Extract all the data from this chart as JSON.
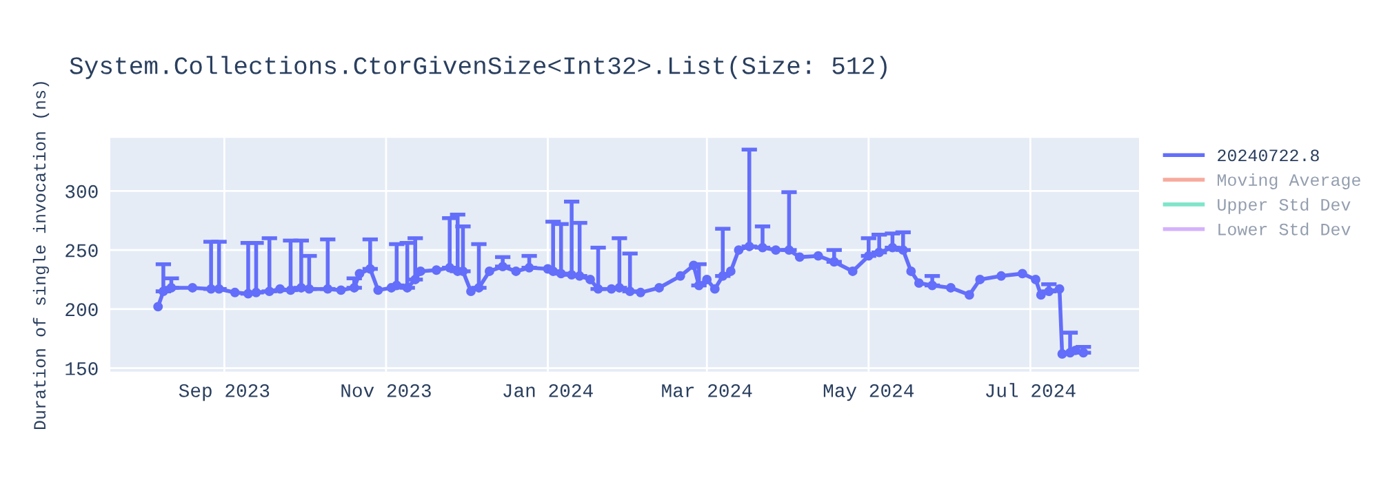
{
  "chart_data": {
    "type": "line",
    "title": "System.Collections.CtorGivenSize<Int32>.List(Size: 512)",
    "ylabel": "Duration of single invocation (ns)",
    "xlim": [
      "2023-07-20",
      "2024-08-11"
    ],
    "ylim": [
      147,
      345
    ],
    "yticks": [
      150,
      200,
      250,
      300
    ],
    "xticks": [
      {
        "value": "2023-09-01",
        "label": "Sep 2023"
      },
      {
        "value": "2023-11-01",
        "label": "Nov 2023"
      },
      {
        "value": "2024-01-01",
        "label": "Jan 2024"
      },
      {
        "value": "2024-03-01",
        "label": "Mar 2024"
      },
      {
        "value": "2024-05-01",
        "label": "May 2024"
      },
      {
        "value": "2024-07-01",
        "label": "Jul 2024"
      }
    ],
    "grid": true,
    "legend": "top right",
    "marker": "circle",
    "line_style": "solid",
    "series": [
      {
        "name": "20240722.8",
        "color": "#636efa",
        "x": [
          "2023-08-07",
          "2023-08-09",
          "2023-08-12",
          "2023-08-20",
          "2023-08-27",
          "2023-08-30",
          "2023-09-05",
          "2023-09-10",
          "2023-09-13",
          "2023-09-18",
          "2023-09-22",
          "2023-09-26",
          "2023-09-30",
          "2023-10-03",
          "2023-10-10",
          "2023-10-15",
          "2023-10-20",
          "2023-10-22",
          "2023-10-26",
          "2023-10-29",
          "2023-11-03",
          "2023-11-05",
          "2023-11-09",
          "2023-11-12",
          "2023-11-14",
          "2023-11-20",
          "2023-11-25",
          "2023-11-28",
          "2023-11-30",
          "2023-12-03",
          "2023-12-06",
          "2023-12-10",
          "2023-12-15",
          "2023-12-20",
          "2023-12-25",
          "2024-01-01",
          "2024-01-03",
          "2024-01-06",
          "2024-01-10",
          "2024-01-13",
          "2024-01-17",
          "2024-01-20",
          "2024-01-25",
          "2024-01-28",
          "2024-02-01",
          "2024-02-05",
          "2024-02-12",
          "2024-02-20",
          "2024-02-25",
          "2024-02-27",
          "2024-03-01",
          "2024-03-04",
          "2024-03-07",
          "2024-03-10",
          "2024-03-13",
          "2024-03-17",
          "2024-03-22",
          "2024-03-27",
          "2024-04-01",
          "2024-04-05",
          "2024-04-12",
          "2024-04-18",
          "2024-04-25",
          "2024-05-01",
          "2024-05-05",
          "2024-05-10",
          "2024-05-14",
          "2024-05-17",
          "2024-05-20",
          "2024-05-25",
          "2024-06-01",
          "2024-06-08",
          "2024-06-12",
          "2024-06-20",
          "2024-06-28",
          "2024-07-03",
          "2024-07-05",
          "2024-07-08",
          "2024-07-12",
          "2024-07-13",
          "2024-07-16",
          "2024-07-18",
          "2024-07-21"
        ],
        "values": [
          202,
          215,
          218,
          218,
          217,
          217,
          214,
          213,
          214,
          215,
          217,
          216,
          218,
          217,
          217,
          216,
          218,
          230,
          234,
          216,
          218,
          220,
          218,
          225,
          232,
          233,
          235,
          232,
          232,
          215,
          218,
          232,
          236,
          232,
          235,
          234,
          232,
          230,
          229,
          228,
          225,
          217,
          217,
          218,
          215,
          214,
          218,
          228,
          237,
          220,
          225,
          217,
          228,
          232,
          250,
          253,
          252,
          250,
          250,
          244,
          245,
          240,
          232,
          245,
          248,
          252,
          250,
          232,
          222,
          220,
          218,
          212,
          225,
          228,
          230,
          225,
          212,
          215,
          217,
          162,
          163,
          165,
          163
        ],
        "errors": [
          null,
          [
            215,
            238
          ],
          [
            218,
            226
          ],
          null,
          [
            217,
            257
          ],
          [
            217,
            257
          ],
          null,
          [
            213,
            256
          ],
          [
            214,
            256
          ],
          [
            215,
            260
          ],
          null,
          [
            216,
            258
          ],
          [
            218,
            258
          ],
          [
            217,
            245
          ],
          [
            217,
            259
          ],
          null,
          [
            218,
            226
          ],
          null,
          [
            234,
            259
          ],
          null,
          null,
          [
            220,
            255
          ],
          [
            218,
            256
          ],
          [
            225,
            260
          ],
          null,
          null,
          [
            235,
            277
          ],
          [
            232,
            280
          ],
          [
            232,
            270
          ],
          null,
          [
            218,
            255
          ],
          null,
          [
            236,
            244
          ],
          null,
          [
            235,
            245
          ],
          null,
          [
            232,
            274
          ],
          [
            230,
            272
          ],
          [
            229,
            291
          ],
          [
            228,
            273
          ],
          null,
          [
            217,
            252
          ],
          null,
          [
            218,
            260
          ],
          [
            215,
            247
          ],
          null,
          null,
          null,
          null,
          [
            220,
            238
          ],
          null,
          null,
          [
            228,
            268
          ],
          null,
          null,
          [
            253,
            335
          ],
          [
            252,
            270
          ],
          null,
          [
            250,
            299
          ],
          null,
          null,
          [
            240,
            250
          ],
          null,
          [
            245,
            260
          ],
          [
            248,
            263
          ],
          [
            252,
            264
          ],
          [
            250,
            265
          ],
          null,
          null,
          [
            220,
            228
          ],
          null,
          null,
          null,
          null,
          null,
          null,
          null,
          [
            215,
            221
          ],
          null,
          null,
          [
            163,
            180
          ],
          null,
          [
            163,
            168
          ]
        ]
      },
      {
        "name": "Moving Average",
        "color": "#ef553b"
      },
      {
        "name": "Upper Std Dev",
        "color": "#00cc96"
      },
      {
        "name": "Lower Std Dev",
        "color": "#ab63fa"
      }
    ]
  }
}
